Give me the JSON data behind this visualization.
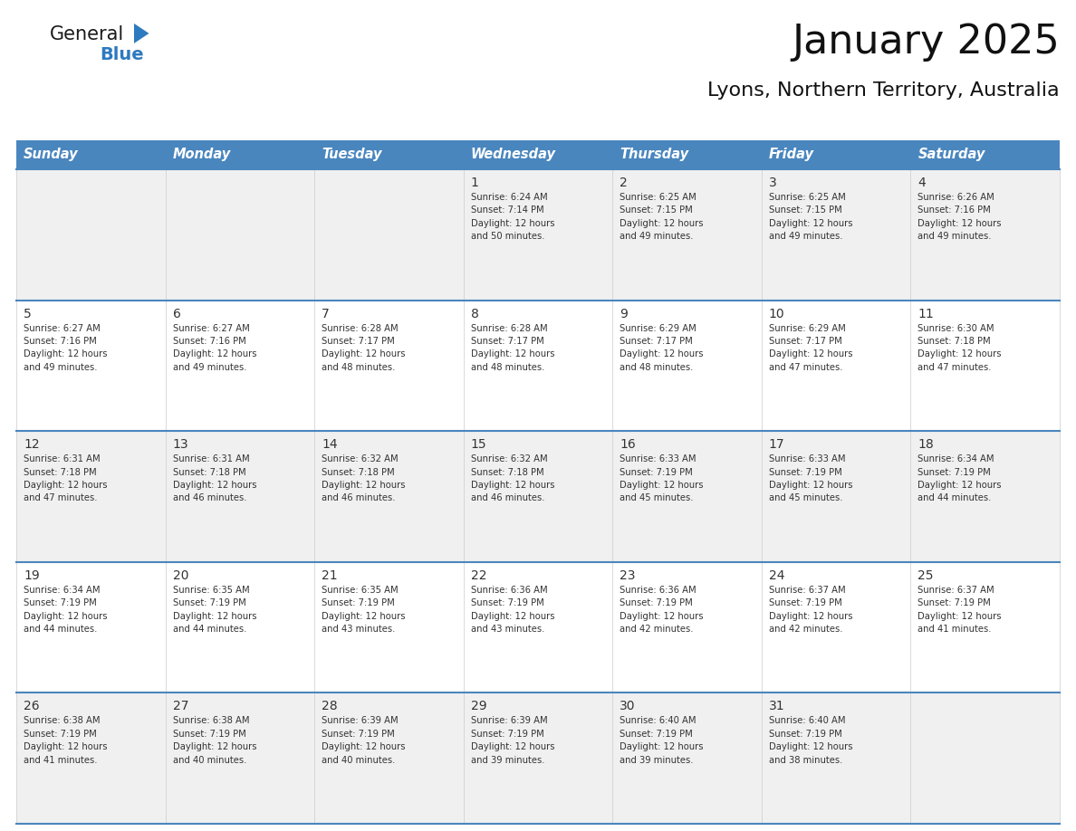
{
  "title": "January 2025",
  "subtitle": "Lyons, Northern Territory, Australia",
  "header_bg_color": "#4a86be",
  "header_text_color": "#ffffff",
  "header_font_size": 10.5,
  "day_names": [
    "Sunday",
    "Monday",
    "Tuesday",
    "Wednesday",
    "Thursday",
    "Friday",
    "Saturday"
  ],
  "title_font_size": 32,
  "subtitle_font_size": 16,
  "cell_bg_row0": "#f0f0f0",
  "cell_bg_row1": "#ffffff",
  "cell_bg_row2": "#f0f0f0",
  "cell_bg_row3": "#ffffff",
  "cell_bg_row4": "#f0f0f0",
  "divider_color": "#4a86be",
  "day_num_color": "#333333",
  "text_color": "#333333",
  "logo_general_color": "#1a1a1a",
  "logo_blue_color": "#2e7abf",
  "logo_triangle_color": "#2e7abf",
  "weeks": [
    [
      {
        "day": null,
        "text": ""
      },
      {
        "day": null,
        "text": ""
      },
      {
        "day": null,
        "text": ""
      },
      {
        "day": 1,
        "text": "Sunrise: 6:24 AM\nSunset: 7:14 PM\nDaylight: 12 hours\nand 50 minutes."
      },
      {
        "day": 2,
        "text": "Sunrise: 6:25 AM\nSunset: 7:15 PM\nDaylight: 12 hours\nand 49 minutes."
      },
      {
        "day": 3,
        "text": "Sunrise: 6:25 AM\nSunset: 7:15 PM\nDaylight: 12 hours\nand 49 minutes."
      },
      {
        "day": 4,
        "text": "Sunrise: 6:26 AM\nSunset: 7:16 PM\nDaylight: 12 hours\nand 49 minutes."
      }
    ],
    [
      {
        "day": 5,
        "text": "Sunrise: 6:27 AM\nSunset: 7:16 PM\nDaylight: 12 hours\nand 49 minutes."
      },
      {
        "day": 6,
        "text": "Sunrise: 6:27 AM\nSunset: 7:16 PM\nDaylight: 12 hours\nand 49 minutes."
      },
      {
        "day": 7,
        "text": "Sunrise: 6:28 AM\nSunset: 7:17 PM\nDaylight: 12 hours\nand 48 minutes."
      },
      {
        "day": 8,
        "text": "Sunrise: 6:28 AM\nSunset: 7:17 PM\nDaylight: 12 hours\nand 48 minutes."
      },
      {
        "day": 9,
        "text": "Sunrise: 6:29 AM\nSunset: 7:17 PM\nDaylight: 12 hours\nand 48 minutes."
      },
      {
        "day": 10,
        "text": "Sunrise: 6:29 AM\nSunset: 7:17 PM\nDaylight: 12 hours\nand 47 minutes."
      },
      {
        "day": 11,
        "text": "Sunrise: 6:30 AM\nSunset: 7:18 PM\nDaylight: 12 hours\nand 47 minutes."
      }
    ],
    [
      {
        "day": 12,
        "text": "Sunrise: 6:31 AM\nSunset: 7:18 PM\nDaylight: 12 hours\nand 47 minutes."
      },
      {
        "day": 13,
        "text": "Sunrise: 6:31 AM\nSunset: 7:18 PM\nDaylight: 12 hours\nand 46 minutes."
      },
      {
        "day": 14,
        "text": "Sunrise: 6:32 AM\nSunset: 7:18 PM\nDaylight: 12 hours\nand 46 minutes."
      },
      {
        "day": 15,
        "text": "Sunrise: 6:32 AM\nSunset: 7:18 PM\nDaylight: 12 hours\nand 46 minutes."
      },
      {
        "day": 16,
        "text": "Sunrise: 6:33 AM\nSunset: 7:19 PM\nDaylight: 12 hours\nand 45 minutes."
      },
      {
        "day": 17,
        "text": "Sunrise: 6:33 AM\nSunset: 7:19 PM\nDaylight: 12 hours\nand 45 minutes."
      },
      {
        "day": 18,
        "text": "Sunrise: 6:34 AM\nSunset: 7:19 PM\nDaylight: 12 hours\nand 44 minutes."
      }
    ],
    [
      {
        "day": 19,
        "text": "Sunrise: 6:34 AM\nSunset: 7:19 PM\nDaylight: 12 hours\nand 44 minutes."
      },
      {
        "day": 20,
        "text": "Sunrise: 6:35 AM\nSunset: 7:19 PM\nDaylight: 12 hours\nand 44 minutes."
      },
      {
        "day": 21,
        "text": "Sunrise: 6:35 AM\nSunset: 7:19 PM\nDaylight: 12 hours\nand 43 minutes."
      },
      {
        "day": 22,
        "text": "Sunrise: 6:36 AM\nSunset: 7:19 PM\nDaylight: 12 hours\nand 43 minutes."
      },
      {
        "day": 23,
        "text": "Sunrise: 6:36 AM\nSunset: 7:19 PM\nDaylight: 12 hours\nand 42 minutes."
      },
      {
        "day": 24,
        "text": "Sunrise: 6:37 AM\nSunset: 7:19 PM\nDaylight: 12 hours\nand 42 minutes."
      },
      {
        "day": 25,
        "text": "Sunrise: 6:37 AM\nSunset: 7:19 PM\nDaylight: 12 hours\nand 41 minutes."
      }
    ],
    [
      {
        "day": 26,
        "text": "Sunrise: 6:38 AM\nSunset: 7:19 PM\nDaylight: 12 hours\nand 41 minutes."
      },
      {
        "day": 27,
        "text": "Sunrise: 6:38 AM\nSunset: 7:19 PM\nDaylight: 12 hours\nand 40 minutes."
      },
      {
        "day": 28,
        "text": "Sunrise: 6:39 AM\nSunset: 7:19 PM\nDaylight: 12 hours\nand 40 minutes."
      },
      {
        "day": 29,
        "text": "Sunrise: 6:39 AM\nSunset: 7:19 PM\nDaylight: 12 hours\nand 39 minutes."
      },
      {
        "day": 30,
        "text": "Sunrise: 6:40 AM\nSunset: 7:19 PM\nDaylight: 12 hours\nand 39 minutes."
      },
      {
        "day": 31,
        "text": "Sunrise: 6:40 AM\nSunset: 7:19 PM\nDaylight: 12 hours\nand 38 minutes."
      },
      {
        "day": null,
        "text": ""
      }
    ]
  ]
}
